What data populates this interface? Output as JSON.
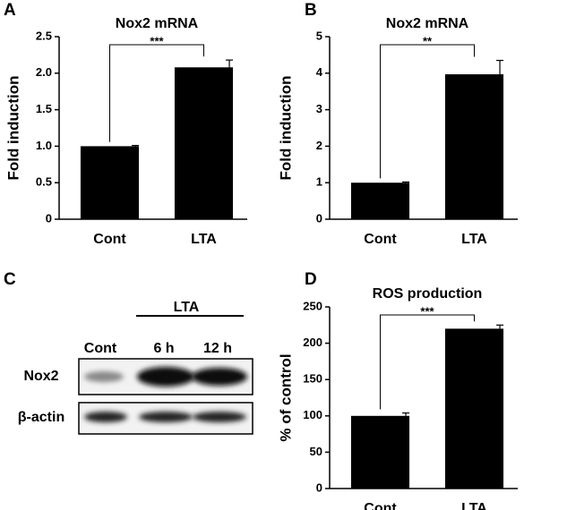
{
  "chart_data": [
    {
      "type": "bar",
      "panel": "A",
      "title": "Nox2 mRNA",
      "y_label": "Fold induction",
      "categories": [
        "Cont",
        "LTA"
      ],
      "values": [
        1.0,
        2.08
      ],
      "errors": [
        0.01,
        0.1
      ],
      "color": "#000000",
      "ylim": [
        0,
        2.5
      ],
      "yticks": [
        0,
        0.5,
        {
          "value": 1,
          "label": "1.0"
        },
        1.5,
        {
          "value": 2,
          "label": "2.0"
        },
        2.5
      ],
      "annotation": "***"
    },
    {
      "type": "bar",
      "panel": "B",
      "title": "Nox2 mRNA",
      "y_label": "Fold induction",
      "categories": [
        "Cont",
        "LTA"
      ],
      "values": [
        1.0,
        3.97
      ],
      "errors": [
        0.02,
        0.38
      ],
      "color": "#000000",
      "ylim": [
        0,
        5
      ],
      "yticks": [
        0,
        1,
        2,
        3,
        4,
        5
      ],
      "annotation": "**"
    },
    {
      "type": "bar",
      "panel": "D",
      "title": "ROS production",
      "y_label": "% of control",
      "categories": [
        "Cont",
        "LTA"
      ],
      "values": [
        100,
        220
      ],
      "errors": [
        4,
        5
      ],
      "color": "#000000",
      "ylim": [
        0,
        250
      ],
      "yticks": [
        0,
        50,
        100,
        150,
        200,
        250
      ],
      "annotation": "***"
    }
  ],
  "blot": {
    "panel": "C",
    "treatment": "LTA",
    "lanes": [
      "Cont",
      "6 h",
      "12 h"
    ],
    "rows": [
      "Nox2",
      "β-actin"
    ]
  }
}
